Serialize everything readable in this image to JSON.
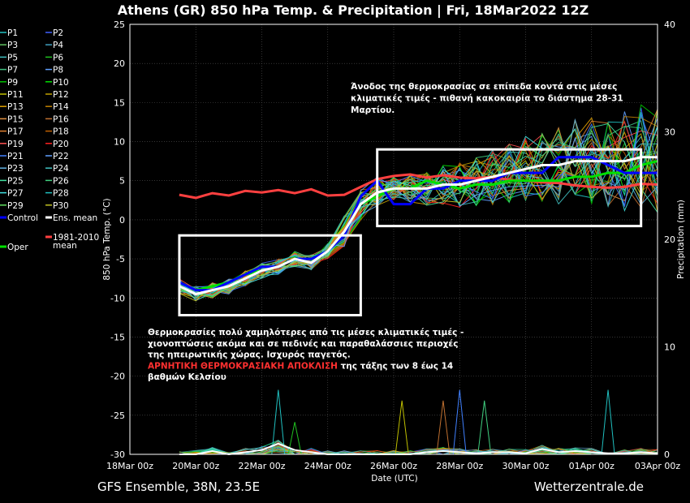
{
  "chart_data": {
    "type": "line",
    "title": "Athens  (GR)  850 hPa Temp. & Precipitation | Fri, 18Mar2022 12Z",
    "xlabel": "Date (UTC)",
    "ylabel": "850 hPa Temp. (°C)",
    "y2label": "Precipitation (mm)",
    "ylim": [
      -30,
      25
    ],
    "y2lim": [
      0,
      40
    ],
    "yticks": [
      25,
      20,
      15,
      10,
      5,
      0,
      -5,
      -10,
      -15,
      -20,
      -25,
      -30
    ],
    "y2ticks": [
      40,
      30,
      20,
      10,
      0
    ],
    "xlim": [
      "2022-03-18T00:00",
      "2022-04-03T00:00"
    ],
    "x": [
      "2022-03-19T12:00",
      "2022-03-20T00:00",
      "2022-03-20T12:00",
      "2022-03-21T00:00",
      "2022-03-21T12:00",
      "2022-03-22T00:00",
      "2022-03-22T12:00",
      "2022-03-23T00:00",
      "2022-03-23T12:00",
      "2022-03-24T00:00",
      "2022-03-24T12:00",
      "2022-03-25T00:00",
      "2022-03-25T12:00",
      "2022-03-26T00:00",
      "2022-03-26T12:00",
      "2022-03-27T00:00",
      "2022-03-27T12:00",
      "2022-03-28T00:00",
      "2022-03-28T12:00",
      "2022-03-29T00:00",
      "2022-03-29T12:00",
      "2022-03-30T00:00",
      "2022-03-30T12:00",
      "2022-03-31T00:00",
      "2022-03-31T12:00",
      "2022-04-01T00:00",
      "2022-04-01T12:00",
      "2022-04-02T00:00",
      "2022-04-02T12:00",
      "2022-04-03T00:00"
    ],
    "xticks": [
      {
        "date": "2022-03-18T00:00",
        "label": "18Mar 00z"
      },
      {
        "date": "2022-03-20T00:00",
        "label": "20Mar 00z"
      },
      {
        "date": "2022-03-22T00:00",
        "label": "22Mar 00z"
      },
      {
        "date": "2022-03-24T00:00",
        "label": "24Mar 00z"
      },
      {
        "date": "2022-03-26T00:00",
        "label": "26Mar 00z"
      },
      {
        "date": "2022-03-28T00:00",
        "label": "28Mar 00z"
      },
      {
        "date": "2022-03-30T00:00",
        "label": "30Mar 00z"
      },
      {
        "date": "2022-04-01T00:00",
        "label": "01Apr 00z"
      },
      {
        "date": "2022-04-03T00:00",
        "label": "03Apr 00z"
      }
    ],
    "legend_position": "left",
    "grid": true,
    "series": [
      {
        "name": "Control",
        "color": "#0000ff",
        "values": [
          -8,
          -9,
          -9,
          -8,
          -7,
          -6,
          -6,
          -5,
          -5,
          -4,
          -2,
          3,
          5,
          2,
          2,
          4,
          4,
          5,
          5,
          5,
          6,
          6,
          6,
          8,
          8,
          8,
          7,
          6,
          6,
          6
        ]
      },
      {
        "name": "Ens. mean",
        "color": "#ffffff",
        "values": [
          -8.5,
          -9.5,
          -9,
          -8.5,
          -7.5,
          -6.5,
          -6,
          -5,
          -5.5,
          -4,
          -1.5,
          2,
          3.5,
          4,
          4,
          4,
          4.5,
          4.5,
          5,
          5.5,
          6,
          6.5,
          7,
          7,
          7.5,
          7.5,
          7.5,
          7.5,
          8,
          8
        ]
      },
      {
        "name": "1981-2010\nmean",
        "color": "#ff4040",
        "values": [
          3.2,
          2.8,
          3.4,
          3.1,
          3.7,
          3.5,
          3.8,
          3.4,
          3.9,
          3.1,
          3.2,
          4.2,
          5.2,
          5.6,
          5.8,
          5.4,
          5.7,
          5.4,
          5.3,
          5.5,
          5.1,
          5.0,
          4.8,
          4.7,
          4.4,
          4.2,
          4.1,
          4.2,
          4.6,
          4.5
        ]
      },
      {
        "name": "Oper",
        "color": "#00e000",
        "values": [
          -8,
          -9,
          -8.5,
          -8,
          -7,
          -6.5,
          -6,
          -5,
          -5,
          -4,
          -1.5,
          2,
          3,
          4,
          4,
          5,
          4.5,
          4,
          4.5,
          4.5,
          5,
          5,
          5,
          5,
          5.5,
          5.5,
          6,
          6,
          7,
          7.5
        ]
      }
    ],
    "members": [
      "P1",
      "P2",
      "P3",
      "P4",
      "P5",
      "P6",
      "P7",
      "P8",
      "P9",
      "P10",
      "P11",
      "P12",
      "P13",
      "P14",
      "P15",
      "P16",
      "P17",
      "P18",
      "P19",
      "P20",
      "P21",
      "P22",
      "P23",
      "P24",
      "P25",
      "P26",
      "P27",
      "P28",
      "P29",
      "P30"
    ],
    "member_colors": [
      "#20c0c0",
      "#4060ff",
      "#60c060",
      "#40a0c0",
      "#40c0c0",
      "#20c020",
      "#40c080",
      "#60a0ff",
      "#00c000",
      "#00e000",
      "#c0c000",
      "#c0a000",
      "#e0a000",
      "#c08000",
      "#e09040",
      "#c07030",
      "#e08030",
      "#c06000",
      "#ff5050",
      "#ff2020",
      "#4080ff",
      "#60a0ff",
      "#60b0e0",
      "#40c0c0",
      "#40e0a0",
      "#40d080",
      "#40e0e0",
      "#20c0c0",
      "#60e060",
      "#c0c020"
    ],
    "precipitation_mm": {
      "members_peaks": [
        {
          "date": "2022-03-22T12:00",
          "mm": 6
        },
        {
          "date": "2022-03-23T00:00",
          "mm": 3
        },
        {
          "date": "2022-03-26T06:00",
          "mm": 5
        },
        {
          "date": "2022-03-27T12:00",
          "mm": 5
        },
        {
          "date": "2022-03-28T00:00",
          "mm": 6
        },
        {
          "date": "2022-03-28T18:00",
          "mm": 5
        },
        {
          "date": "2022-04-01T12:00",
          "mm": 6
        }
      ],
      "mean": [
        0,
        0,
        0.3,
        0,
        0.2,
        0.4,
        1,
        0.4,
        0.2,
        0,
        0,
        0,
        0,
        0,
        0,
        0.2,
        0.3,
        0.2,
        0.1,
        0.2,
        0.2,
        0.1,
        0.5,
        0.2,
        0.3,
        0.2,
        0.1,
        0.1,
        0.2,
        0.1
      ]
    },
    "boxes": [
      {
        "x0": "2022-03-19T12:00",
        "x1": "2022-03-25T00:00",
        "y0": -12.2,
        "y1": -2
      },
      {
        "x0": "2022-03-25T12:00",
        "x1": "2022-04-02T12:00",
        "y0": -0.8,
        "y1": 9
      }
    ],
    "annotations": {
      "top_lines": [
        "Άνοδος της θερμοκρασίας σε επίπεδα κοντά στις μέσες",
        "κλιματικές τιμές - πιθανή κακοκαιρία το διάστημα 28-31",
        "Μαρτίου."
      ],
      "bottom_lines": [
        "Θερμοκρασίες πολύ χαμηλότερες από τις μέσες κλιματικές τιμές -",
        "χιονοπτώσεις ακόμα και σε πεδινές και παραθαλάσσιες περιοχές",
        "της ηπειρωτικής χώρας. Ισχυρός παγετός."
      ],
      "bottom_red": "ΑΡΝΗΤΙΚΗ ΘΕΡΜΟΚΡΑΣΙΑΚΗ ΑΠΟΚΛΙΣΗ",
      "bottom_after_red": " της τάξης των 8 έως 14",
      "bottom_last": "βαθμών Κελσίου"
    },
    "footer_left": "GFS Ensemble, 38N, 23.5E",
    "footer_right": "Wetterzentrale.de"
  }
}
